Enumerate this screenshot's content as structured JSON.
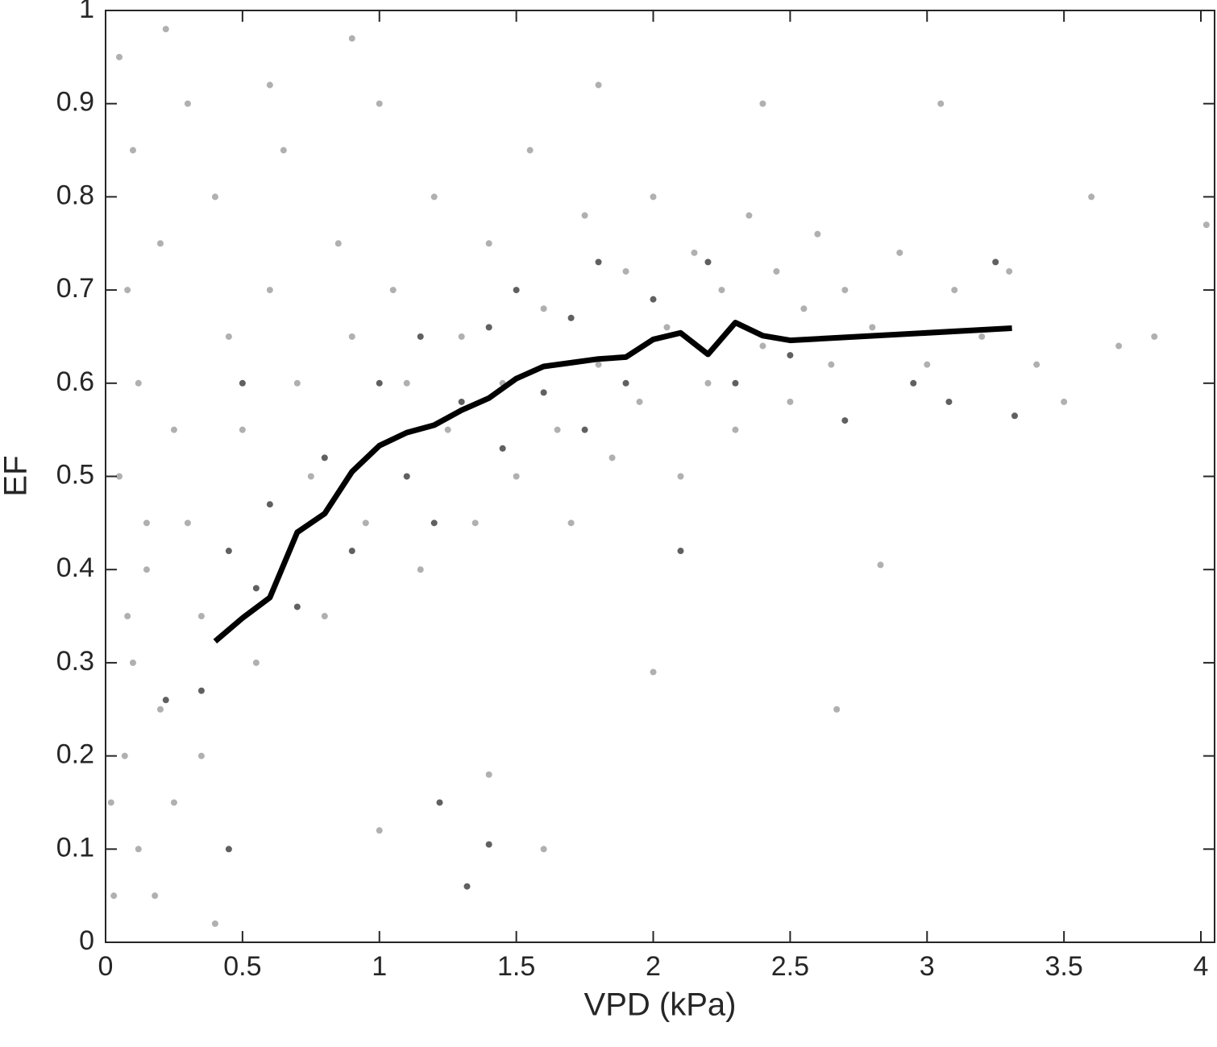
{
  "chart_data": {
    "type": "scatter",
    "xlabel": "VPD (kPa)",
    "ylabel": "EF",
    "xlim": [
      0,
      4.05
    ],
    "ylim": [
      0,
      1
    ],
    "xticks": [
      0,
      0.5,
      1,
      1.5,
      2,
      2.5,
      3,
      3.5,
      4
    ],
    "yticks": [
      0,
      0.1,
      0.2,
      0.3,
      0.4,
      0.5,
      0.6,
      0.7,
      0.8,
      0.9,
      1
    ],
    "series": [
      {
        "type": "scatter",
        "color": "#b0b0b0",
        "x": [
          0.05,
          0.1,
          0.08,
          0.12,
          0.05,
          0.15,
          0.1,
          0.2,
          0.07,
          0.12,
          0.03,
          0.2,
          0.25,
          0.3,
          0.35,
          0.3,
          0.4,
          0.45,
          0.5,
          0.55,
          0.6,
          0.65,
          0.7,
          0.75,
          0.8,
          0.85,
          0.9,
          0.95,
          1.0,
          1.05,
          1.1,
          1.15,
          1.2,
          1.25,
          1.3,
          1.35,
          1.4,
          1.45,
          1.5,
          1.55,
          1.6,
          1.65,
          1.7,
          1.75,
          1.8,
          1.85,
          1.9,
          1.95,
          2.0,
          2.05,
          2.1,
          2.15,
          2.2,
          2.25,
          2.3,
          2.35,
          2.4,
          2.45,
          2.5,
          2.55,
          2.6,
          2.65,
          2.7,
          2.8,
          2.9,
          3.0,
          3.1,
          3.2,
          3.3,
          3.4,
          3.5,
          3.6,
          3.7,
          3.83,
          4.02,
          0.02,
          0.18,
          0.4,
          1.0,
          1.4,
          0.6,
          0.9,
          1.8,
          2.4,
          3.05,
          2.67,
          2.83,
          2.0,
          1.6,
          0.22,
          0.15,
          0.08,
          0.25,
          0.35
        ],
        "y": [
          0.95,
          0.85,
          0.7,
          0.6,
          0.5,
          0.4,
          0.3,
          0.25,
          0.2,
          0.1,
          0.05,
          0.75,
          0.55,
          0.45,
          0.35,
          0.9,
          0.8,
          0.65,
          0.55,
          0.3,
          0.7,
          0.85,
          0.6,
          0.5,
          0.35,
          0.75,
          0.65,
          0.45,
          0.9,
          0.7,
          0.6,
          0.4,
          0.8,
          0.55,
          0.65,
          0.45,
          0.75,
          0.6,
          0.5,
          0.85,
          0.68,
          0.55,
          0.45,
          0.78,
          0.62,
          0.52,
          0.72,
          0.58,
          0.8,
          0.66,
          0.5,
          0.74,
          0.6,
          0.7,
          0.55,
          0.78,
          0.64,
          0.72,
          0.58,
          0.68,
          0.76,
          0.62,
          0.7,
          0.66,
          0.74,
          0.62,
          0.7,
          0.65,
          0.72,
          0.62,
          0.58,
          0.8,
          0.64,
          0.65,
          0.77,
          0.15,
          0.05,
          0.02,
          0.12,
          0.18,
          0.92,
          0.97,
          0.92,
          0.9,
          0.9,
          0.25,
          0.405,
          0.29,
          0.1,
          0.98,
          0.45,
          0.35,
          0.15,
          0.2
        ]
      },
      {
        "type": "scatter",
        "color": "#606060",
        "x": [
          0.22,
          0.35,
          0.45,
          0.55,
          0.6,
          0.7,
          0.8,
          0.9,
          1.0,
          1.1,
          1.15,
          1.2,
          1.3,
          1.4,
          1.45,
          1.5,
          1.6,
          1.7,
          1.75,
          1.8,
          1.9,
          2.0,
          2.1,
          2.2,
          2.3,
          2.5,
          2.7,
          2.95,
          3.08,
          3.25,
          1.22,
          1.4,
          1.32,
          0.45,
          3.32,
          0.5
        ],
        "y": [
          0.26,
          0.27,
          0.42,
          0.38,
          0.47,
          0.36,
          0.52,
          0.42,
          0.6,
          0.5,
          0.65,
          0.45,
          0.58,
          0.66,
          0.53,
          0.7,
          0.59,
          0.67,
          0.55,
          0.73,
          0.6,
          0.69,
          0.42,
          0.73,
          0.6,
          0.63,
          0.56,
          0.6,
          0.58,
          0.73,
          0.15,
          0.105,
          0.06,
          0.1,
          0.565,
          0.6
        ]
      },
      {
        "type": "line",
        "color": "#000000",
        "x": [
          0.4,
          0.5,
          0.6,
          0.7,
          0.8,
          0.9,
          1.0,
          1.1,
          1.2,
          1.3,
          1.4,
          1.5,
          1.6,
          1.7,
          1.8,
          1.9,
          2.0,
          2.1,
          2.2,
          2.3,
          2.4,
          2.5,
          3.31
        ],
        "y": [
          0.323,
          0.348,
          0.37,
          0.44,
          0.46,
          0.505,
          0.533,
          0.547,
          0.555,
          0.571,
          0.584,
          0.605,
          0.618,
          0.622,
          0.626,
          0.628,
          0.647,
          0.654,
          0.631,
          0.665,
          0.651,
          0.646,
          0.659
        ]
      }
    ]
  }
}
